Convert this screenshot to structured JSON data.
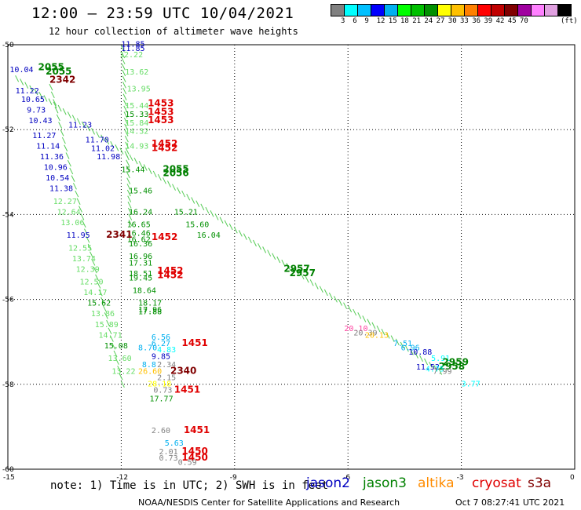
{
  "header": {
    "title": "12:00 – 23:59 UTC 10/04/2021",
    "subtitle": "12 hour collection of altimeter wave heights"
  },
  "colorbar": {
    "unit": "(ft)",
    "colors": [
      "#808080",
      "#00ffff",
      "#00c0ff",
      "#0000ff",
      "#00b0f0",
      "#00ff00",
      "#00c000",
      "#009000",
      "#ffff00",
      "#ffc000",
      "#ff8000",
      "#ff0000",
      "#c00000",
      "#800000",
      "#a000a0",
      "#ff80ff",
      "#e0a0e0",
      "#000000"
    ],
    "labels": [
      "3",
      "6",
      "9",
      "12",
      "15",
      "18",
      "21",
      "24",
      "27",
      "30",
      "33",
      "36",
      "39",
      "42",
      "45",
      "70"
    ]
  },
  "axes": {
    "y_labels": [
      "-50",
      "-52",
      "-54",
      "-56",
      "-58",
      "-60"
    ],
    "x_labels": [
      "-15",
      "-12",
      "-9",
      "-6",
      "-3",
      "0"
    ]
  },
  "chart_data": {
    "type": "map",
    "lat_range": [
      -60,
      -50
    ],
    "lon_range": [
      -15,
      0
    ],
    "grid": true,
    "satellites": [
      {
        "name": "jason2",
        "color": "#0000c0"
      },
      {
        "name": "jason3",
        "color": "#008000"
      },
      {
        "name": "altika",
        "color": "#ff8c00"
      },
      {
        "name": "cryosat",
        "color": "#e00000"
      },
      {
        "name": "s3a",
        "color": "#800000"
      }
    ],
    "labels": [
      {
        "text": "11.85",
        "lon": -12.0,
        "lat": -50.05,
        "color": "#0000c0"
      },
      {
        "text": "11.85",
        "lon": -12.0,
        "lat": -50.15,
        "color": "#0000c0"
      },
      {
        "text": "12.22",
        "lon": -12.05,
        "lat": -50.3,
        "color": "#66dd66"
      },
      {
        "text": "13.62",
        "lon": -11.9,
        "lat": -50.7,
        "color": "#66dd66"
      },
      {
        "text": "13.95",
        "lon": -11.85,
        "lat": -51.1,
        "color": "#66dd66"
      },
      {
        "text": "1453",
        "lon": -11.3,
        "lat": -51.45,
        "color": "#e00000",
        "bold": true
      },
      {
        "text": "15.44",
        "lon": -11.9,
        "lat": -51.5,
        "color": "#66dd66"
      },
      {
        "text": "1453",
        "lon": -11.3,
        "lat": -51.65,
        "color": "#e00000",
        "bold": true
      },
      {
        "text": "15.33",
        "lon": -11.9,
        "lat": -51.7,
        "color": "#009000"
      },
      {
        "text": "1453",
        "lon": -11.3,
        "lat": -51.85,
        "color": "#e00000",
        "bold": true
      },
      {
        "text": "15.84",
        "lon": -11.9,
        "lat": -51.9,
        "color": "#66dd66"
      },
      {
        "text": "14.32",
        "lon": -11.9,
        "lat": -52.1,
        "color": "#66dd66"
      },
      {
        "text": "1452",
        "lon": -11.2,
        "lat": -52.4,
        "color": "#e00000",
        "bold": true
      },
      {
        "text": "14.93",
        "lon": -11.9,
        "lat": -52.45,
        "color": "#66dd66"
      },
      {
        "text": "1452",
        "lon": -11.2,
        "lat": -52.5,
        "color": "#e00000",
        "bold": true
      },
      {
        "text": "15.44",
        "lon": -12.0,
        "lat": -53.0,
        "color": "#009000"
      },
      {
        "text": "2055",
        "lon": -10.9,
        "lat": -53.0,
        "color": "#008000",
        "bold": true
      },
      {
        "text": "2056",
        "lon": -10.9,
        "lat": -53.1,
        "color": "#008000",
        "bold": true
      },
      {
        "text": "15.46",
        "lon": -11.8,
        "lat": -53.5,
        "color": "#009000"
      },
      {
        "text": "16.24",
        "lon": -11.8,
        "lat": -54.0,
        "color": "#009000"
      },
      {
        "text": "15.21",
        "lon": -10.6,
        "lat": -54.0,
        "color": "#009000"
      },
      {
        "text": "15.60",
        "lon": -10.3,
        "lat": -54.3,
        "color": "#009000"
      },
      {
        "text": "16.65",
        "lon": -11.85,
        "lat": -54.3,
        "color": "#009000"
      },
      {
        "text": "16.46",
        "lon": -11.85,
        "lat": -54.5,
        "color": "#009000"
      },
      {
        "text": "1452",
        "lon": -11.2,
        "lat": -54.6,
        "color": "#e00000",
        "bold": true
      },
      {
        "text": "16.62",
        "lon": -11.85,
        "lat": -54.65,
        "color": "#009000"
      },
      {
        "text": "16.04",
        "lon": -10.0,
        "lat": -54.55,
        "color": "#009000"
      },
      {
        "text": "16.36",
        "lon": -11.8,
        "lat": -54.75,
        "color": "#009000"
      },
      {
        "text": "16.96",
        "lon": -11.8,
        "lat": -55.05,
        "color": "#009000"
      },
      {
        "text": "17.31",
        "lon": -11.8,
        "lat": -55.2,
        "color": "#009000"
      },
      {
        "text": "18.51",
        "lon": -11.8,
        "lat": -55.45,
        "color": "#009000"
      },
      {
        "text": "1452",
        "lon": -11.05,
        "lat": -55.4,
        "color": "#e00000",
        "bold": true
      },
      {
        "text": "19.45",
        "lon": -11.8,
        "lat": -55.55,
        "color": "#009000"
      },
      {
        "text": "1452",
        "lon": -11.05,
        "lat": -55.5,
        "color": "#e00000",
        "bold": true
      },
      {
        "text": "2957",
        "lon": -7.7,
        "lat": -55.35,
        "color": "#008000",
        "bold": true
      },
      {
        "text": "2957",
        "lon": -7.55,
        "lat": -55.45,
        "color": "#008000",
        "bold": true
      },
      {
        "text": "18.64",
        "lon": -11.7,
        "lat": -55.85,
        "color": "#009000"
      },
      {
        "text": "18.17",
        "lon": -11.55,
        "lat": -56.15,
        "color": "#009000"
      },
      {
        "text": "17.96",
        "lon": -11.55,
        "lat": -56.3,
        "color": "#009000"
      },
      {
        "text": "17.88",
        "lon": -11.55,
        "lat": -56.35,
        "color": "#009000"
      },
      {
        "text": "20.10",
        "lon": -6.1,
        "lat": -56.75,
        "color": "#ff40a0"
      },
      {
        "text": "20.39",
        "lon": -5.85,
        "lat": -56.85,
        "color": "#808080"
      },
      {
        "text": "20.13",
        "lon": -5.55,
        "lat": -56.9,
        "color": "#ffc000"
      },
      {
        "text": "6.56",
        "lon": -11.2,
        "lat": -56.95,
        "color": "#00b0f0"
      },
      {
        "text": "6.27",
        "lon": -11.2,
        "lat": -57.1,
        "color": "#00b0f0"
      },
      {
        "text": "8.70",
        "lon": -11.55,
        "lat": -57.2,
        "color": "#00b0f0"
      },
      {
        "text": "4.83",
        "lon": -11.05,
        "lat": -57.25,
        "color": "#00ffff"
      },
      {
        "text": "1451",
        "lon": -10.4,
        "lat": -57.1,
        "color": "#e00000",
        "bold": true
      },
      {
        "text": "7.51",
        "lon": -4.8,
        "lat": -57.1,
        "color": "#00b0f0"
      },
      {
        "text": "6.96",
        "lon": -4.6,
        "lat": -57.2,
        "color": "#00b0f0"
      },
      {
        "text": "10.88",
        "lon": -4.4,
        "lat": -57.3,
        "color": "#0000c0"
      },
      {
        "text": "9.85",
        "lon": -11.2,
        "lat": -57.4,
        "color": "#0000c0"
      },
      {
        "text": "5.91",
        "lon": -3.8,
        "lat": -57.45,
        "color": "#00ffff"
      },
      {
        "text": "2959",
        "lon": -3.5,
        "lat": -57.55,
        "color": "#008000",
        "bold": true
      },
      {
        "text": "11.52",
        "lon": -4.2,
        "lat": -57.65,
        "color": "#0000c0"
      },
      {
        "text": "2958",
        "lon": -3.6,
        "lat": -57.65,
        "color": "#008000",
        "bold": true
      },
      {
        "text": "4.75",
        "lon": -3.95,
        "lat": -57.7,
        "color": "#00ffff"
      },
      {
        "text": "7.99",
        "lon": -3.75,
        "lat": -57.75,
        "color": "#808080"
      },
      {
        "text": "8.8",
        "lon": -11.45,
        "lat": -57.6,
        "color": "#00b0f0"
      },
      {
        "text": "2.34",
        "lon": -11.05,
        "lat": -57.6,
        "color": "#808080"
      },
      {
        "text": "2340",
        "lon": -10.7,
        "lat": -57.75,
        "color": "#800000",
        "bold": true
      },
      {
        "text": "26.60",
        "lon": -11.55,
        "lat": -57.75,
        "color": "#ffc000"
      },
      {
        "text": "2.15",
        "lon": -11.05,
        "lat": -57.9,
        "color": "#808080"
      },
      {
        "text": "28.18",
        "lon": -11.3,
        "lat": -58.05,
        "color": "#ffff00"
      },
      {
        "text": "3.77",
        "lon": -3.0,
        "lat": -58.05,
        "color": "#00ffff"
      },
      {
        "text": "0.73",
        "lon": -11.15,
        "lat": -58.2,
        "color": "#808080"
      },
      {
        "text": "1451",
        "lon": -10.6,
        "lat": -58.2,
        "color": "#e00000",
        "bold": true
      },
      {
        "text": "17.77",
        "lon": -11.25,
        "lat": -58.4,
        "color": "#009000"
      },
      {
        "text": "2.60",
        "lon": -11.2,
        "lat": -59.15,
        "color": "#808080"
      },
      {
        "text": "1451",
        "lon": -10.35,
        "lat": -59.15,
        "color": "#e00000",
        "bold": true
      },
      {
        "text": "5.63",
        "lon": -10.85,
        "lat": -59.45,
        "color": "#00b0f0"
      },
      {
        "text": "2.01",
        "lon": -11.0,
        "lat": -59.65,
        "color": "#808080"
      },
      {
        "text": "1450",
        "lon": -10.4,
        "lat": -59.65,
        "color": "#e00000",
        "bold": true
      },
      {
        "text": "0.73",
        "lon": -11.0,
        "lat": -59.8,
        "color": "#808080"
      },
      {
        "text": "1450",
        "lon": -10.4,
        "lat": -59.8,
        "color": "#e00000",
        "bold": true
      },
      {
        "text": "0.59",
        "lon": -10.5,
        "lat": -59.9,
        "color": "#808080"
      },
      {
        "text": "2341",
        "lon": -12.4,
        "lat": -54.55,
        "color": "#800000",
        "bold": true
      },
      {
        "text": "2055",
        "lon": -14.2,
        "lat": -50.6,
        "color": "#008000",
        "bold": true
      },
      {
        "text": "2055",
        "lon": -14.0,
        "lat": -50.7,
        "color": "#008000",
        "bold": true
      },
      {
        "text": "2342",
        "lon": -13.9,
        "lat": -50.9,
        "color": "#800000",
        "bold": true
      },
      {
        "text": "10.04",
        "lon": -14.95,
        "lat": -50.65,
        "color": "#0000c0"
      },
      {
        "text": "11.22",
        "lon": -14.8,
        "lat": -51.15,
        "color": "#0000c0"
      },
      {
        "text": "10.65",
        "lon": -14.65,
        "lat": -51.35,
        "color": "#0000c0"
      },
      {
        "text": "9.73",
        "lon": -14.5,
        "lat": -51.6,
        "color": "#0000c0"
      },
      {
        "text": "10.43",
        "lon": -14.45,
        "lat": -51.85,
        "color": "#0000c0"
      },
      {
        "text": "11.27",
        "lon": -14.35,
        "lat": -52.2,
        "color": "#0000c0"
      },
      {
        "text": "11.14",
        "lon": -14.25,
        "lat": -52.45,
        "color": "#0000c0"
      },
      {
        "text": "11.36",
        "lon": -14.15,
        "lat": -52.7,
        "color": "#0000c0"
      },
      {
        "text": "10.96",
        "lon": -14.05,
        "lat": -52.95,
        "color": "#0000c0"
      },
      {
        "text": "10.54",
        "lon": -14.0,
        "lat": -53.2,
        "color": "#0000c0"
      },
      {
        "text": "11.38",
        "lon": -13.9,
        "lat": -53.45,
        "color": "#0000c0"
      },
      {
        "text": "12.27",
        "lon": -13.8,
        "lat": -53.75,
        "color": "#66dd66"
      },
      {
        "text": "12.64",
        "lon": -13.7,
        "lat": -54.0,
        "color": "#66dd66"
      },
      {
        "text": "13.06",
        "lon": -13.6,
        "lat": -54.25,
        "color": "#66dd66"
      },
      {
        "text": "11.95",
        "lon": -13.45,
        "lat": -54.55,
        "color": "#0000c0"
      },
      {
        "text": "12.55",
        "lon": -13.4,
        "lat": -54.85,
        "color": "#66dd66"
      },
      {
        "text": "13.74",
        "lon": -13.3,
        "lat": -55.1,
        "color": "#66dd66"
      },
      {
        "text": "12.39",
        "lon": -13.2,
        "lat": -55.35,
        "color": "#66dd66"
      },
      {
        "text": "12.50",
        "lon": -13.1,
        "lat": -55.65,
        "color": "#66dd66"
      },
      {
        "text": "14.17",
        "lon": -13.0,
        "lat": -55.9,
        "color": "#66dd66"
      },
      {
        "text": "15.62",
        "lon": -12.9,
        "lat": -56.15,
        "color": "#009000"
      },
      {
        "text": "13.86",
        "lon": -12.8,
        "lat": -56.4,
        "color": "#66dd66"
      },
      {
        "text": "15.89",
        "lon": -12.7,
        "lat": -56.65,
        "color": "#66dd66"
      },
      {
        "text": "14.71",
        "lon": -12.6,
        "lat": -56.9,
        "color": "#66dd66"
      },
      {
        "text": "15.08",
        "lon": -12.45,
        "lat": -57.15,
        "color": "#009000"
      },
      {
        "text": "13.60",
        "lon": -12.35,
        "lat": -57.45,
        "color": "#66dd66"
      },
      {
        "text": "13.22",
        "lon": -12.25,
        "lat": -57.75,
        "color": "#66dd66"
      },
      {
        "text": "11.23",
        "lon": -13.4,
        "lat": -51.95,
        "color": "#0000c0"
      },
      {
        "text": "11.70",
        "lon": -12.95,
        "lat": -52.3,
        "color": "#0000c0"
      },
      {
        "text": "11.02",
        "lon": -12.8,
        "lat": -52.5,
        "color": "#0000c0"
      },
      {
        "text": "11.98",
        "lon": -12.65,
        "lat": -52.7,
        "color": "#0000c0"
      }
    ]
  },
  "footer": {
    "note": "note: 1) Time is in UTC; 2) SWH is in feet",
    "legend": [
      {
        "label": "jason2",
        "color": "#0000c0"
      },
      {
        "label": "jason3",
        "color": "#008000"
      },
      {
        "label": "altika",
        "color": "#ff8c00"
      },
      {
        "label": "cryosat",
        "color": "#e00000"
      },
      {
        "label": "s3a",
        "color": "#800000"
      }
    ],
    "credit": "NOAA/NESDIS Center for Satellite Applications and Research",
    "date": "Oct  7 08:27:41 UTC 2021"
  }
}
